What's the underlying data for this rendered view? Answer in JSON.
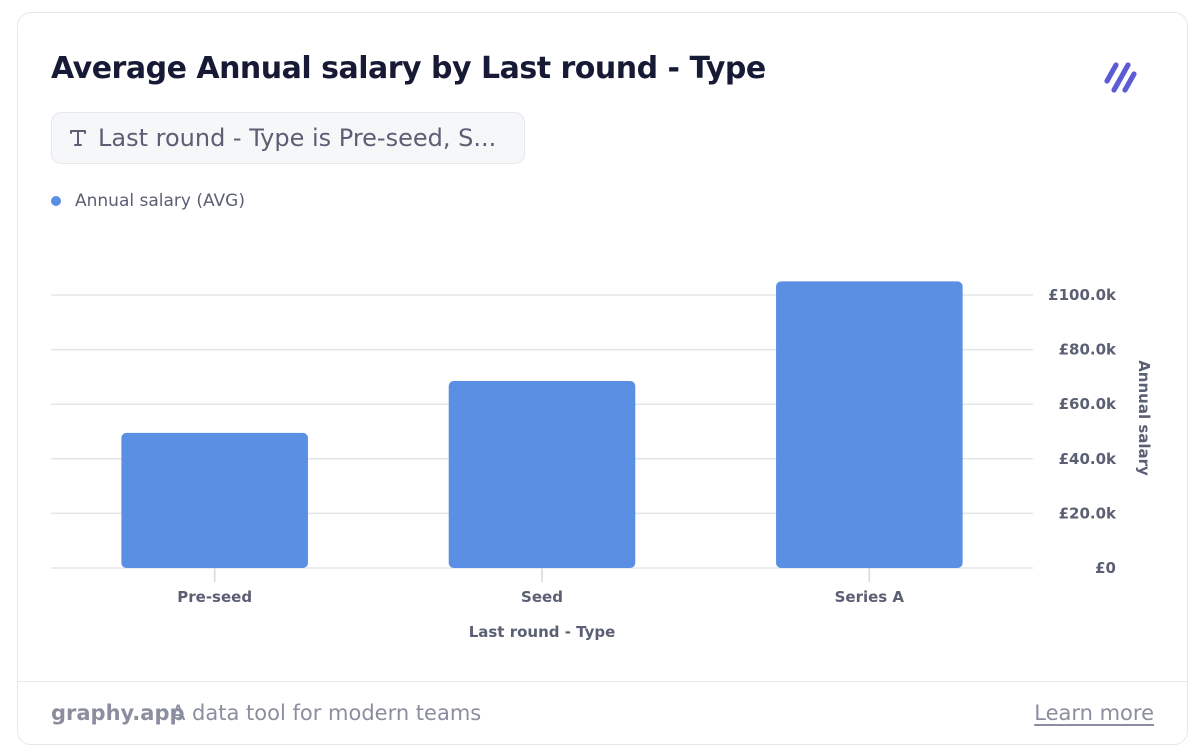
{
  "card": {
    "title": "Average Annual salary by Last round - Type",
    "logo_icon": "graphy-slashes-icon",
    "logo_color": "#5b5bd6"
  },
  "filter": {
    "icon": "text-type-icon",
    "label": "Last round - Type is Pre-seed, S..."
  },
  "legend": {
    "items": [
      {
        "label": "Annual salary (AVG)",
        "color": "#5b8fe3"
      }
    ]
  },
  "footer": {
    "brand": "graphy.app",
    "tagline": "A data tool for modern teams",
    "learn_more": "Learn more"
  },
  "chart_data": {
    "type": "bar",
    "categories": [
      "Pre-seed",
      "Seed",
      "Series A"
    ],
    "series": [
      {
        "name": "Annual salary (AVG)",
        "values": [
          49500,
          68500,
          105000
        ],
        "color": "#5b8fe3"
      }
    ],
    "xlabel": "Last round - Type",
    "ylabel": "Annual salary",
    "ylim": [
      0,
      100000
    ],
    "yticks": [
      0,
      20000,
      40000,
      60000,
      80000,
      100000
    ],
    "ytick_labels": [
      "£0",
      "£20.0k",
      "£40.0k",
      "£60.0k",
      "£80.0k",
      "£100.0k"
    ],
    "y_axis_position": "right",
    "grid": true,
    "legend_position": "top-left"
  }
}
